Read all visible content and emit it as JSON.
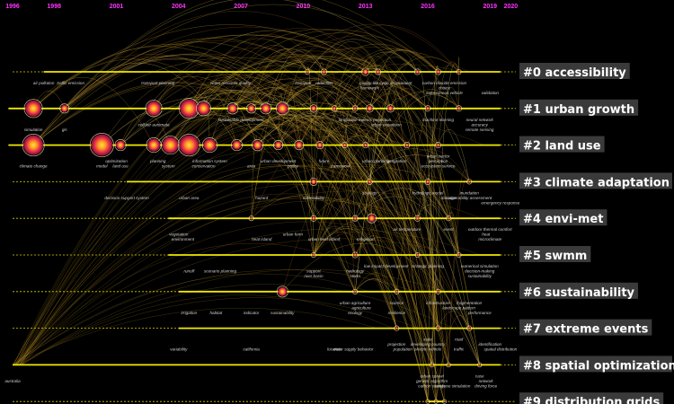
{
  "chart_data": {
    "type": "timeline",
    "years": [
      "1996",
      "1998",
      "2001",
      "2004",
      "2007",
      "2010",
      "2013",
      "2016",
      "2019",
      "2020"
    ],
    "clusters": [
      {
        "id": "#0 accessibility",
        "start": 1997.5,
        "end": 2019.5,
        "nodes": [
          {
            "year": 2010.2,
            "size": 1.5
          },
          {
            "year": 2011.0,
            "size": 2
          },
          {
            "year": 2013.0,
            "size": 3
          },
          {
            "year": 2013.6,
            "size": 2
          },
          {
            "year": 2015.5,
            "size": 2
          },
          {
            "year": 2016.5,
            "size": 2
          },
          {
            "year": 2017.5,
            "size": 1.5
          }
        ],
        "labels": [
          {
            "year": 1997.5,
            "row": 0,
            "text": "air pollution"
          },
          {
            "year": 1998.8,
            "row": 0,
            "text": "traffic emission"
          },
          {
            "year": 2003.0,
            "row": 0,
            "text": "transport planning"
          },
          {
            "year": 2006.5,
            "row": 0,
            "text": "water resource quality"
          },
          {
            "year": 2010.0,
            "row": 0,
            "text": "transport"
          },
          {
            "year": 2011.0,
            "row": 0,
            "text": "reduction"
          },
          {
            "year": 2013.0,
            "row": 0,
            "text": "quality"
          },
          {
            "year": 2014.3,
            "row": 0,
            "text": "life cycle assessment"
          },
          {
            "year": 2016.8,
            "row": 0,
            "text": "carbon dioxide emission"
          },
          {
            "year": 2013.2,
            "row": 1,
            "text": "framework"
          },
          {
            "year": 2016.8,
            "row": 1,
            "text": "choice"
          },
          {
            "year": 2016.8,
            "row": 2,
            "text": "autonomous vehicle"
          },
          {
            "year": 2019.0,
            "row": 2,
            "text": "validation"
          }
        ]
      },
      {
        "id": "#1 urban growth",
        "start": 1995.8,
        "end": 2019.5,
        "nodes": [
          {
            "year": 1997.0,
            "size": 9
          },
          {
            "year": 1998.5,
            "size": 4
          },
          {
            "year": 2002.8,
            "size": 8
          },
          {
            "year": 2004.5,
            "size": 10
          },
          {
            "year": 2005.2,
            "size": 7
          },
          {
            "year": 2006.6,
            "size": 5
          },
          {
            "year": 2007.5,
            "size": 4
          },
          {
            "year": 2008.2,
            "size": 5
          },
          {
            "year": 2009.0,
            "size": 6
          },
          {
            "year": 2010.5,
            "size": 3
          },
          {
            "year": 2011.5,
            "size": 2
          },
          {
            "year": 2012.5,
            "size": 2
          },
          {
            "year": 2013.2,
            "size": 3
          },
          {
            "year": 2014.2,
            "size": 3
          },
          {
            "year": 2016.0,
            "size": 2
          },
          {
            "year": 2017.5,
            "size": 2
          }
        ],
        "labels": [
          {
            "year": 2007.0,
            "row": 0,
            "text": "sustainable development"
          },
          {
            "year": 2012.5,
            "row": 0,
            "text": "landscape metrics"
          },
          {
            "year": 2013.8,
            "row": 0,
            "text": "projection"
          },
          {
            "year": 2016.5,
            "row": 0,
            "text": "machine learning"
          },
          {
            "year": 2018.5,
            "row": 0,
            "text": "neural network"
          },
          {
            "year": 1997.0,
            "row": 2,
            "text": "simulation"
          },
          {
            "year": 1998.5,
            "row": 2,
            "text": "gis"
          },
          {
            "year": 2002.8,
            "row": 1,
            "text": "cellular automata"
          },
          {
            "year": 2014.0,
            "row": 1,
            "text": "urban expansion"
          },
          {
            "year": 2018.5,
            "row": 1,
            "text": "accuracy"
          },
          {
            "year": 2018.5,
            "row": 2,
            "text": "remote sensing"
          }
        ]
      },
      {
        "id": "#2 land use",
        "start": 1995.8,
        "end": 2019.5,
        "nodes": [
          {
            "year": 1997.0,
            "size": 11
          },
          {
            "year": 2000.3,
            "size": 12
          },
          {
            "year": 2001.2,
            "size": 5
          },
          {
            "year": 2002.8,
            "size": 7
          },
          {
            "year": 2003.6,
            "size": 9
          },
          {
            "year": 2004.5,
            "size": 11
          },
          {
            "year": 2005.5,
            "size": 7
          },
          {
            "year": 2006.8,
            "size": 5
          },
          {
            "year": 2007.8,
            "size": 5
          },
          {
            "year": 2008.8,
            "size": 4
          },
          {
            "year": 2009.8,
            "size": 4
          },
          {
            "year": 2010.8,
            "size": 3
          },
          {
            "year": 2012.0,
            "size": 2
          },
          {
            "year": 2013.0,
            "size": 2
          },
          {
            "year": 2015.0,
            "size": 2
          },
          {
            "year": 2016.5,
            "size": 2
          }
        ],
        "labels": [
          {
            "year": 1997.0,
            "row": 2,
            "text": "climate change"
          },
          {
            "year": 2000.3,
            "row": 2,
            "text": "model"
          },
          {
            "year": 2001.0,
            "row": 1,
            "text": "optimization"
          },
          {
            "year": 2001.2,
            "row": 2,
            "text": "land use"
          },
          {
            "year": 2003.0,
            "row": 1,
            "text": "planning"
          },
          {
            "year": 2003.5,
            "row": 2,
            "text": "system"
          },
          {
            "year": 2005.5,
            "row": 1,
            "text": "information system"
          },
          {
            "year": 2005.2,
            "row": 2,
            "text": "conservation"
          },
          {
            "year": 2007.5,
            "row": 2,
            "text": "area"
          },
          {
            "year": 2008.8,
            "row": 1,
            "text": "urban development"
          },
          {
            "year": 2009.5,
            "row": 2,
            "text": "policy"
          },
          {
            "year": 2011.0,
            "row": 1,
            "text": "future"
          },
          {
            "year": 2011.8,
            "row": 2,
            "text": "framework"
          },
          {
            "year": 2013.5,
            "row": 1,
            "text": "urban planning"
          },
          {
            "year": 2014.5,
            "row": 1,
            "text": "integration"
          },
          {
            "year": 2016.5,
            "row": 0,
            "text": "urban sector"
          },
          {
            "year": 2016.5,
            "row": 1,
            "text": "perception"
          },
          {
            "year": 2016.5,
            "row": 2,
            "text": "ecosystem service"
          }
        ]
      },
      {
        "id": "#3 climate adaptation",
        "start": 2001.5,
        "end": 2019.5,
        "nodes": [
          {
            "year": 2010.5,
            "size": 3
          },
          {
            "year": 2013.2,
            "size": 2
          },
          {
            "year": 2016.0,
            "size": 2
          },
          {
            "year": 2018.0,
            "size": 1.5
          }
        ],
        "labels": [
          {
            "year": 2001.5,
            "row": 1,
            "text": "decision support system"
          },
          {
            "year": 2004.5,
            "row": 1,
            "text": "urban area"
          },
          {
            "year": 2008.0,
            "row": 1,
            "text": "hazard"
          },
          {
            "year": 2010.5,
            "row": 1,
            "text": "vulnerability"
          },
          {
            "year": 2013.2,
            "row": 0,
            "text": "strategy"
          },
          {
            "year": 2016.0,
            "row": 0,
            "text": "hydrologic model"
          },
          {
            "year": 2018.0,
            "row": 0,
            "text": "inundation"
          },
          {
            "year": 2017.0,
            "row": 1,
            "text": "damage"
          },
          {
            "year": 2018.0,
            "row": 1,
            "text": "vulnerability assessment"
          },
          {
            "year": 2019.5,
            "row": 2,
            "text": "emergency response"
          }
        ]
      },
      {
        "id": "#4 envi-met",
        "start": 2003.5,
        "end": 2019.5,
        "nodes": [
          {
            "year": 2007.5,
            "size": 1.5
          },
          {
            "year": 2010.5,
            "size": 2
          },
          {
            "year": 2012.5,
            "size": 2
          },
          {
            "year": 2013.3,
            "size": 4
          },
          {
            "year": 2015.5,
            "size": 2
          },
          {
            "year": 2017.0,
            "size": 1.5
          }
        ],
        "labels": [
          {
            "year": 2004.0,
            "row": 1,
            "text": "vegetation"
          },
          {
            "year": 2004.2,
            "row": 2,
            "text": "environment"
          },
          {
            "year": 2008.0,
            "row": 2,
            "text": "heat island"
          },
          {
            "year": 2009.5,
            "row": 1,
            "text": "urban form"
          },
          {
            "year": 2011.0,
            "row": 2,
            "text": "urban heat island"
          },
          {
            "year": 2013.0,
            "row": 2,
            "text": "mitigation"
          },
          {
            "year": 2015.0,
            "row": 0,
            "text": "air temperature"
          },
          {
            "year": 2017.0,
            "row": 0,
            "text": "event"
          },
          {
            "year": 2019.0,
            "row": 0,
            "text": "outdoor thermal comfort"
          },
          {
            "year": 2018.8,
            "row": 1,
            "text": "heat"
          },
          {
            "year": 2019.0,
            "row": 2,
            "text": "microclimate"
          }
        ]
      },
      {
        "id": "#5 swmm",
        "start": 2003.5,
        "end": 2019.5,
        "nodes": [
          {
            "year": 2010.5,
            "size": 1.5
          },
          {
            "year": 2012.5,
            "size": 2
          },
          {
            "year": 2015.5,
            "size": 1.5
          },
          {
            "year": 2017.5,
            "size": 1.5
          }
        ],
        "labels": [
          {
            "year": 2004.5,
            "row": 1,
            "text": "runoff"
          },
          {
            "year": 2006.0,
            "row": 1,
            "text": "scenario planning"
          },
          {
            "year": 2010.5,
            "row": 1,
            "text": "support"
          },
          {
            "year": 2010.5,
            "row": 2,
            "text": "river basin"
          },
          {
            "year": 2012.5,
            "row": 1,
            "text": "hydrology"
          },
          {
            "year": 2012.5,
            "row": 2,
            "text": "storm"
          },
          {
            "year": 2014.0,
            "row": 0,
            "text": "low impact development"
          },
          {
            "year": 2016.0,
            "row": 0,
            "text": "strategic planning"
          },
          {
            "year": 2018.5,
            "row": 0,
            "text": "numerical simulation"
          },
          {
            "year": 2018.5,
            "row": 1,
            "text": "decision-making"
          },
          {
            "year": 2018.5,
            "row": 2,
            "text": "sustainability"
          }
        ]
      },
      {
        "id": "#6 sustainability",
        "start": 2004.0,
        "end": 2019.5,
        "nodes": [
          {
            "year": 2009.0,
            "size": 5
          },
          {
            "year": 2012.5,
            "size": 1.5
          },
          {
            "year": 2014.5,
            "size": 1.5
          },
          {
            "year": 2016.5,
            "size": 1.5
          }
        ],
        "labels": [
          {
            "year": 2004.5,
            "row": 2,
            "text": "irrigation"
          },
          {
            "year": 2005.8,
            "row": 2,
            "text": "habitat"
          },
          {
            "year": 2007.5,
            "row": 2,
            "text": "indicator"
          },
          {
            "year": 2009.0,
            "row": 2,
            "text": "sustainability"
          },
          {
            "year": 2012.5,
            "row": 0,
            "text": "urban agriculture"
          },
          {
            "year": 2012.8,
            "row": 1,
            "text": "agriculture"
          },
          {
            "year": 2012.5,
            "row": 2,
            "text": "ecology"
          },
          {
            "year": 2014.5,
            "row": 0,
            "text": "science"
          },
          {
            "year": 2014.5,
            "row": 2,
            "text": "resilience"
          },
          {
            "year": 2016.5,
            "row": 0,
            "text": "infrastructure"
          },
          {
            "year": 2018.0,
            "row": 0,
            "text": "fragmentation"
          },
          {
            "year": 2017.5,
            "row": 1,
            "text": "landscape pattern"
          },
          {
            "year": 2018.5,
            "row": 2,
            "text": "performance"
          }
        ]
      },
      {
        "id": "#7 extreme events",
        "start": 2004.0,
        "end": 2019.5,
        "nodes": [
          {
            "year": 2014.5,
            "size": 1.5
          },
          {
            "year": 2016.5,
            "size": 1.5
          },
          {
            "year": 2018.0,
            "size": 1.5
          }
        ],
        "labels": [
          {
            "year": 2004.0,
            "row": 2,
            "text": "variability"
          },
          {
            "year": 2007.5,
            "row": 2,
            "text": "california"
          },
          {
            "year": 2011.5,
            "row": 2,
            "text": "location"
          },
          {
            "year": 2012.0,
            "row": 2,
            "text": "water supply"
          },
          {
            "year": 2013.0,
            "row": 2,
            "text": "behavior"
          },
          {
            "year": 2014.5,
            "row": 1,
            "text": "projection"
          },
          {
            "year": 2014.8,
            "row": 2,
            "text": "population"
          },
          {
            "year": 2016.0,
            "row": 0,
            "text": "state"
          },
          {
            "year": 2016.0,
            "row": 1,
            "text": "developing country"
          },
          {
            "year": 2016.0,
            "row": 2,
            "text": "electric vehicle"
          },
          {
            "year": 2017.5,
            "row": 0,
            "text": "road"
          },
          {
            "year": 2017.5,
            "row": 2,
            "text": "traffic"
          },
          {
            "year": 2019.0,
            "row": 1,
            "text": "identification"
          },
          {
            "year": 2019.5,
            "row": 2,
            "text": "spatial distribution"
          }
        ]
      },
      {
        "id": "#8 spatial optimization",
        "start": 1996.0,
        "end": 2019.5,
        "nodes": [
          {
            "year": 2016.2,
            "size": 1.2
          },
          {
            "year": 2017.0,
            "size": 1.2
          },
          {
            "year": 2018.5,
            "size": 1.2
          }
        ],
        "labels": [
          {
            "year": 1996.0,
            "row": 1,
            "text": "australia"
          },
          {
            "year": 2016.2,
            "row": 0,
            "text": "urban sprawl"
          },
          {
            "year": 2016.2,
            "row": 1,
            "text": "genetic algorithm"
          },
          {
            "year": 2016.2,
            "row": 2,
            "text": "carbon storage"
          },
          {
            "year": 2017.2,
            "row": 2,
            "text": "land use simulation"
          },
          {
            "year": 2018.5,
            "row": 0,
            "text": "case"
          },
          {
            "year": 2018.8,
            "row": 1,
            "text": "network"
          },
          {
            "year": 2018.8,
            "row": 2,
            "text": "driving force"
          }
        ]
      },
      {
        "id": "#9 distribution grids",
        "start": 2016.0,
        "end": 2016.8,
        "nodes": [
          {
            "year": 2016.0,
            "size": 1
          },
          {
            "year": 2016.4,
            "size": 1
          },
          {
            "year": 2016.8,
            "size": 1
          }
        ],
        "labels": []
      }
    ]
  }
}
